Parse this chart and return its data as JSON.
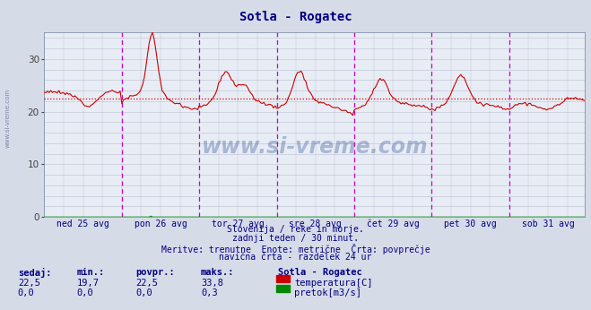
{
  "title": "Sotla - Rogatec",
  "title_color": "#000080",
  "bg_color": "#d6dbe8",
  "plot_bg_color": "#e8edf5",
  "grid_color": "#b8c0d0",
  "ylim": [
    0,
    35
  ],
  "yticks": [
    0,
    10,
    20,
    30
  ],
  "x_labels": [
    "ned 25 avg",
    "pon 26 avg",
    "tor 27 avg",
    "sre 28 avg",
    "čet 29 avg",
    "pet 30 avg",
    "sob 31 avg"
  ],
  "vline_color": "#cc00cc",
  "avg_line_color": "#cc0000",
  "avg_line_value": 22.5,
  "temp_line_color": "#cc0000",
  "flow_line_color": "#008800",
  "bottom_text_color": "#000080",
  "bottom_texts": [
    "Slovenija / reke in morje.",
    "zadnji teden / 30 minut.",
    "Meritve: trenutne  Enote: metrične  Črta: povprečje",
    "navična črta - razdelek 24 ur"
  ],
  "legend_title": "Sotla - Rogatec",
  "legend_items": [
    {
      "label": "temperatura[C]",
      "color": "#cc0000"
    },
    {
      "label": "pretok[m3/s]",
      "color": "#008800"
    }
  ],
  "stats_headers": [
    "sedaj:",
    "min.:",
    "povpr.:",
    "maks.:"
  ],
  "stats_temp": [
    "22,5",
    "19,7",
    "22,5",
    "33,8"
  ],
  "stats_flow": [
    "0,0",
    "0,0",
    "0,0",
    "0,3"
  ],
  "watermark_text": "www.si-vreme.com",
  "watermark_color": "#1a3a8a",
  "watermark_alpha": 0.3,
  "left_label": "www.si-vreme.com",
  "n_days": 7,
  "points_per_day": 48
}
